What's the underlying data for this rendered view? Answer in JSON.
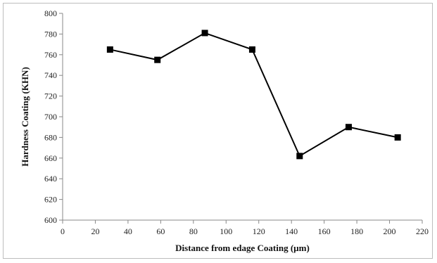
{
  "chart_data": {
    "type": "line",
    "title": "",
    "xlabel": "Distance from edage Coating (µm)",
    "ylabel": "Hardness Coating (KHN)",
    "xlim": [
      0,
      220
    ],
    "ylim": [
      600,
      800
    ],
    "x_ticks": [
      "0",
      "20",
      "40",
      "60",
      "80",
      "100",
      "120",
      "140",
      "160",
      "180",
      "200",
      "220"
    ],
    "y_ticks": [
      "600",
      "620",
      "640",
      "660",
      "680",
      "700",
      "720",
      "740",
      "760",
      "780",
      "800"
    ],
    "grid": false,
    "legend": "none",
    "colors": {
      "line": "#000000",
      "axis": "#888888"
    },
    "series": [
      {
        "marker": "square",
        "points": [
          {
            "x": 29,
            "y": 765
          },
          {
            "x": 58,
            "y": 755
          },
          {
            "x": 87,
            "y": 781
          },
          {
            "x": 116,
            "y": 765
          },
          {
            "x": 145,
            "y": 662
          },
          {
            "x": 175,
            "y": 690
          },
          {
            "x": 205,
            "y": 680
          }
        ]
      }
    ]
  }
}
